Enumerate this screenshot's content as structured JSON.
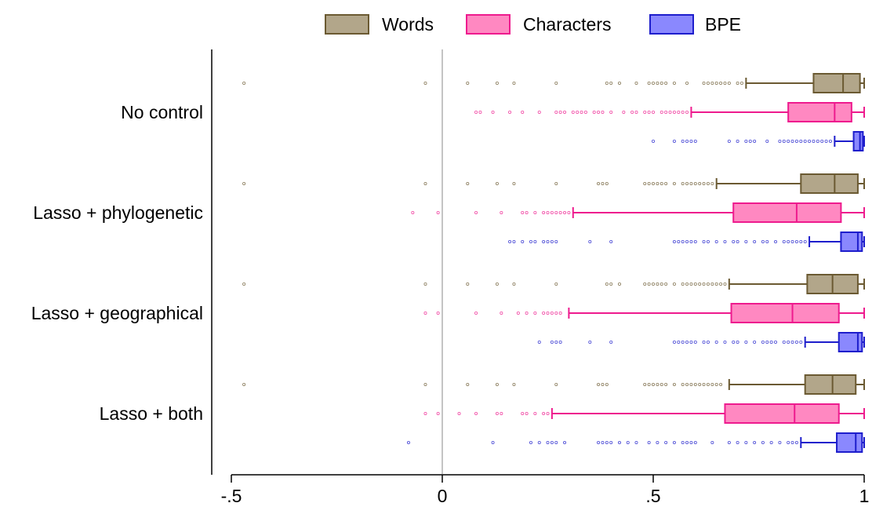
{
  "chart_data": {
    "type": "boxplot",
    "orientation": "horizontal",
    "xlim": [
      -0.5,
      1
    ],
    "x_ticks": [
      {
        "value": -0.5,
        "label": "-.5"
      },
      {
        "value": 0,
        "label": "0"
      },
      {
        "value": 0.5,
        "label": ".5"
      },
      {
        "value": 1,
        "label": "1"
      }
    ],
    "reference_line": 0,
    "legend": {
      "position": "top",
      "items": [
        {
          "label": "Words",
          "fill": "#b2a68a",
          "stroke": "#6b5a32"
        },
        {
          "label": "Characters",
          "fill": "#ff88c1",
          "stroke": "#ee1b8e"
        },
        {
          "label": "BPE",
          "fill": "#8a88fe",
          "stroke": "#1e1ecc"
        }
      ]
    },
    "categories": [
      "No control",
      "Lasso + phylogenetic",
      "Lasso + geographical",
      "Lasso + both"
    ],
    "groups": [
      {
        "category": "No control",
        "boxes": [
          {
            "series": "Words",
            "whisker_low": 0.72,
            "q1": 0.88,
            "median": 0.95,
            "q3": 0.99,
            "whisker_high": 1.0,
            "outliers": [
              -0.47,
              -0.04,
              0.06,
              0.13,
              0.17,
              0.27,
              0.39,
              0.4,
              0.42,
              0.46,
              0.49,
              0.5,
              0.51,
              0.52,
              0.53,
              0.55,
              0.58,
              0.62,
              0.63,
              0.64,
              0.65,
              0.66,
              0.67,
              0.68,
              0.7,
              0.71
            ]
          },
          {
            "series": "Characters",
            "whisker_low": 0.59,
            "q1": 0.82,
            "median": 0.93,
            "q3": 0.97,
            "whisker_high": 1.0,
            "outliers": [
              0.08,
              0.09,
              0.12,
              0.16,
              0.19,
              0.23,
              0.27,
              0.28,
              0.29,
              0.31,
              0.32,
              0.33,
              0.34,
              0.36,
              0.37,
              0.38,
              0.4,
              0.43,
              0.45,
              0.46,
              0.48,
              0.49,
              0.5,
              0.52,
              0.53,
              0.54,
              0.55,
              0.56,
              0.57,
              0.58
            ]
          },
          {
            "series": "BPE",
            "whisker_low": 0.93,
            "q1": 0.975,
            "median": 0.99,
            "q3": 0.997,
            "whisker_high": 1.0,
            "outliers": [
              0.5,
              0.55,
              0.57,
              0.58,
              0.59,
              0.6,
              0.68,
              0.7,
              0.72,
              0.73,
              0.74,
              0.77,
              0.8,
              0.81,
              0.82,
              0.83,
              0.84,
              0.85,
              0.86,
              0.87,
              0.88,
              0.89,
              0.9,
              0.91,
              0.92
            ]
          }
        ]
      },
      {
        "category": "Lasso + phylogenetic",
        "boxes": [
          {
            "series": "Words",
            "whisker_low": 0.65,
            "q1": 0.85,
            "median": 0.93,
            "q3": 0.985,
            "whisker_high": 1.0,
            "outliers": [
              -0.47,
              -0.04,
              0.06,
              0.13,
              0.17,
              0.27,
              0.37,
              0.38,
              0.39,
              0.48,
              0.49,
              0.5,
              0.51,
              0.52,
              0.53,
              0.55,
              0.57,
              0.58,
              0.59,
              0.6,
              0.61,
              0.62,
              0.63,
              0.64
            ]
          },
          {
            "series": "Characters",
            "whisker_low": 0.31,
            "q1": 0.69,
            "median": 0.84,
            "q3": 0.945,
            "whisker_high": 1.0,
            "outliers": [
              -0.07,
              -0.01,
              0.08,
              0.14,
              0.19,
              0.2,
              0.22,
              0.24,
              0.25,
              0.26,
              0.27,
              0.28,
              0.29,
              0.3
            ]
          },
          {
            "series": "BPE",
            "whisker_low": 0.87,
            "q1": 0.945,
            "median": 0.985,
            "q3": 0.995,
            "whisker_high": 1.0,
            "outliers": [
              0.16,
              0.17,
              0.19,
              0.21,
              0.22,
              0.24,
              0.25,
              0.26,
              0.27,
              0.35,
              0.4,
              0.55,
              0.56,
              0.57,
              0.58,
              0.59,
              0.6,
              0.62,
              0.63,
              0.65,
              0.67,
              0.69,
              0.7,
              0.72,
              0.74,
              0.76,
              0.77,
              0.79,
              0.81,
              0.82,
              0.83,
              0.84,
              0.85,
              0.86
            ]
          }
        ]
      },
      {
        "category": "Lasso + geographical",
        "boxes": [
          {
            "series": "Words",
            "whisker_low": 0.68,
            "q1": 0.865,
            "median": 0.925,
            "q3": 0.985,
            "whisker_high": 1.0,
            "outliers": [
              -0.47,
              -0.04,
              0.06,
              0.13,
              0.17,
              0.27,
              0.39,
              0.4,
              0.42,
              0.48,
              0.49,
              0.5,
              0.51,
              0.52,
              0.53,
              0.55,
              0.57,
              0.58,
              0.59,
              0.6,
              0.61,
              0.62,
              0.63,
              0.64,
              0.65,
              0.66,
              0.67
            ]
          },
          {
            "series": "Characters",
            "whisker_low": 0.3,
            "q1": 0.685,
            "median": 0.83,
            "q3": 0.94,
            "whisker_high": 1.0,
            "outliers": [
              -0.04,
              -0.01,
              0.08,
              0.14,
              0.18,
              0.2,
              0.22,
              0.24,
              0.25,
              0.26,
              0.27,
              0.28
            ]
          },
          {
            "series": "BPE",
            "whisker_low": 0.86,
            "q1": 0.94,
            "median": 0.985,
            "q3": 0.995,
            "whisker_high": 1.0,
            "outliers": [
              0.23,
              0.26,
              0.27,
              0.28,
              0.35,
              0.4,
              0.55,
              0.56,
              0.57,
              0.58,
              0.59,
              0.6,
              0.62,
              0.63,
              0.65,
              0.67,
              0.69,
              0.7,
              0.72,
              0.74,
              0.76,
              0.77,
              0.78,
              0.79,
              0.81,
              0.82,
              0.83,
              0.84,
              0.85
            ]
          }
        ]
      },
      {
        "category": "Lasso + both",
        "boxes": [
          {
            "series": "Words",
            "whisker_low": 0.68,
            "q1": 0.86,
            "median": 0.925,
            "q3": 0.98,
            "whisker_high": 1.0,
            "outliers": [
              -0.47,
              -0.04,
              0.06,
              0.13,
              0.17,
              0.27,
              0.37,
              0.38,
              0.39,
              0.48,
              0.49,
              0.5,
              0.51,
              0.52,
              0.53,
              0.55,
              0.57,
              0.58,
              0.59,
              0.6,
              0.61,
              0.62,
              0.63,
              0.64,
              0.65,
              0.66
            ]
          },
          {
            "series": "Characters",
            "whisker_low": 0.26,
            "q1": 0.67,
            "median": 0.835,
            "q3": 0.94,
            "whisker_high": 1.0,
            "outliers": [
              -0.04,
              -0.01,
              0.04,
              0.08,
              0.13,
              0.14,
              0.19,
              0.2,
              0.22,
              0.24,
              0.25
            ]
          },
          {
            "series": "BPE",
            "whisker_low": 0.85,
            "q1": 0.935,
            "median": 0.98,
            "q3": 0.995,
            "whisker_high": 1.0,
            "outliers": [
              -0.08,
              0.12,
              0.21,
              0.23,
              0.25,
              0.26,
              0.27,
              0.29,
              0.37,
              0.38,
              0.39,
              0.4,
              0.42,
              0.44,
              0.46,
              0.49,
              0.51,
              0.53,
              0.55,
              0.57,
              0.58,
              0.59,
              0.6,
              0.64,
              0.68,
              0.7,
              0.72,
              0.74,
              0.76,
              0.78,
              0.8,
              0.82,
              0.83,
              0.84
            ]
          }
        ]
      }
    ]
  }
}
